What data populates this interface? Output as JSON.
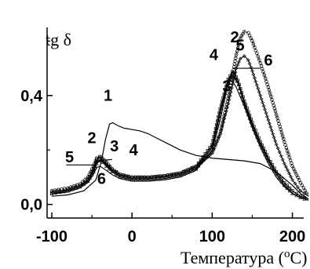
{
  "chart_data": {
    "type": "line",
    "ylabel": "tg δ",
    "xlabel_text": "Температура (",
    "xlabel_sup": "o",
    "xlabel_unit": "C)",
    "xlim": [
      -100,
      220
    ],
    "ylim": [
      -0.05,
      0.65
    ],
    "xticks": [
      -100,
      0,
      100,
      200
    ],
    "xtick_labels": [
      "-100",
      "0",
      "100",
      "200"
    ],
    "yticks": [
      0.0,
      0.4
    ],
    "ytick_labels": [
      "0,0",
      "0,4"
    ],
    "grid": false,
    "series": [
      {
        "label": "1",
        "marker": "line",
        "x": [
          -100,
          -80,
          -60,
          -45,
          -38,
          -33,
          -28,
          -24,
          -18,
          -10,
          0,
          10,
          20,
          30,
          40,
          60,
          80,
          100,
          120,
          140,
          160,
          180,
          200,
          210,
          220
        ],
        "y": [
          0.03,
          0.035,
          0.05,
          0.09,
          0.16,
          0.24,
          0.295,
          0.3,
          0.29,
          0.28,
          0.275,
          0.27,
          0.26,
          0.245,
          0.23,
          0.2,
          0.18,
          0.17,
          0.165,
          0.16,
          0.15,
          0.12,
          0.07,
          0.04,
          0.02
        ]
      },
      {
        "label": "2",
        "marker": "circle",
        "x": [
          -100,
          -80,
          -65,
          -55,
          -48,
          -44,
          -40,
          -37,
          -32,
          -25,
          -15,
          0,
          20,
          40,
          60,
          80,
          100,
          110,
          120,
          130,
          135,
          140,
          145,
          150,
          160,
          170,
          180,
          190,
          200,
          210,
          220
        ],
        "y": [
          0.05,
          0.06,
          0.075,
          0.1,
          0.14,
          0.17,
          0.175,
          0.17,
          0.155,
          0.13,
          0.11,
          0.1,
          0.1,
          0.105,
          0.115,
          0.14,
          0.19,
          0.26,
          0.39,
          0.55,
          0.61,
          0.635,
          0.63,
          0.6,
          0.52,
          0.43,
          0.33,
          0.23,
          0.14,
          0.08,
          0.03
        ]
      },
      {
        "label": "3",
        "marker": "square",
        "x": [
          -100,
          -80,
          -65,
          -55,
          -48,
          -44,
          -40,
          -37,
          -32,
          -25,
          -15,
          0,
          20,
          40,
          60,
          80,
          100,
          110,
          120,
          125,
          128,
          132,
          140,
          150,
          160,
          170,
          180,
          190,
          200,
          210,
          220
        ],
        "y": [
          0.04,
          0.05,
          0.065,
          0.09,
          0.13,
          0.165,
          0.175,
          0.165,
          0.15,
          0.13,
          0.11,
          0.1,
          0.1,
          0.105,
          0.115,
          0.14,
          0.22,
          0.35,
          0.46,
          0.485,
          0.48,
          0.455,
          0.38,
          0.3,
          0.23,
          0.17,
          0.12,
          0.08,
          0.05,
          0.03,
          0.02
        ]
      },
      {
        "label": "4",
        "marker": "triangle",
        "x": [
          -100,
          -80,
          -65,
          -55,
          -48,
          -44,
          -40,
          -37,
          -32,
          -25,
          -15,
          0,
          20,
          40,
          60,
          80,
          100,
          110,
          120,
          124,
          128,
          133,
          140,
          150,
          160,
          170,
          180,
          190,
          200,
          210,
          220
        ],
        "y": [
          0.04,
          0.05,
          0.065,
          0.085,
          0.12,
          0.15,
          0.16,
          0.155,
          0.14,
          0.12,
          0.1,
          0.09,
          0.09,
          0.095,
          0.105,
          0.13,
          0.21,
          0.34,
          0.45,
          0.47,
          0.465,
          0.44,
          0.37,
          0.29,
          0.22,
          0.16,
          0.11,
          0.07,
          0.04,
          0.025,
          0.015
        ]
      },
      {
        "label": "5",
        "marker": "diamond",
        "x": [
          -100,
          -80,
          -65,
          -55,
          -48,
          -44,
          -40,
          -37,
          -32,
          -25,
          -15,
          0,
          20,
          40,
          60,
          80,
          100,
          110,
          120,
          130,
          135,
          140,
          145,
          150,
          160,
          170,
          180,
          190,
          200,
          210,
          220
        ],
        "y": [
          0.045,
          0.055,
          0.07,
          0.09,
          0.125,
          0.155,
          0.165,
          0.16,
          0.145,
          0.125,
          0.105,
          0.095,
          0.095,
          0.1,
          0.11,
          0.135,
          0.19,
          0.26,
          0.37,
          0.5,
          0.535,
          0.545,
          0.53,
          0.49,
          0.4,
          0.31,
          0.22,
          0.15,
          0.09,
          0.05,
          0.03
        ]
      },
      {
        "label": "6",
        "marker": "line",
        "x": [
          -100,
          -80,
          -65,
          -55,
          -48,
          -44,
          -40,
          -37,
          -32,
          -25,
          -15,
          0,
          20,
          40,
          60,
          80,
          100,
          110,
          118,
          122,
          126,
          130,
          140,
          150,
          160,
          170,
          180,
          190,
          200,
          210,
          220
        ],
        "y": [
          0.04,
          0.045,
          0.06,
          0.08,
          0.11,
          0.135,
          0.14,
          0.135,
          0.125,
          0.11,
          0.095,
          0.085,
          0.085,
          0.09,
          0.1,
          0.125,
          0.2,
          0.31,
          0.42,
          0.455,
          0.45,
          0.43,
          0.36,
          0.28,
          0.21,
          0.15,
          0.1,
          0.065,
          0.04,
          0.025,
          0.015
        ]
      }
    ],
    "annotations": [
      {
        "text": "1",
        "x": -30,
        "y": 0.38
      },
      {
        "text": "2",
        "x": -50,
        "y": 0.225
      },
      {
        "text": "3",
        "x": -22,
        "y": 0.195
      },
      {
        "text": "4",
        "x": 2,
        "y": 0.18
      },
      {
        "text": "5",
        "x": -78,
        "y": 0.155
      },
      {
        "text": "6",
        "x": -38,
        "y": 0.075
      },
      {
        "text": "2",
        "x": 128,
        "y": 0.595
      },
      {
        "text": "5",
        "x": 135,
        "y": 0.565
      },
      {
        "text": "4",
        "x": 102,
        "y": 0.53
      },
      {
        "text": "3",
        "x": 118,
        "y": 0.415
      },
      {
        "text": "6",
        "x": 170,
        "y": 0.51
      }
    ]
  }
}
